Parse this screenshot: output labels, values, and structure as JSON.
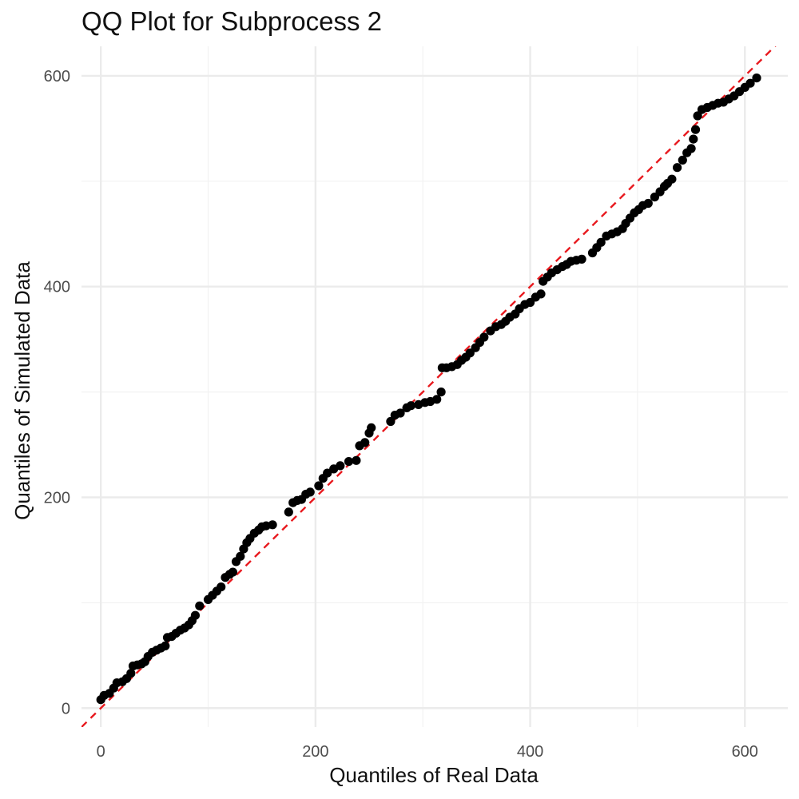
{
  "chart_data": {
    "type": "scatter",
    "title": "QQ Plot for Subprocess 2",
    "xlabel": "Quantiles of Real Data",
    "ylabel": "Quantiles of Simulated Data",
    "xlim": [
      -18,
      640
    ],
    "ylim": [
      -18,
      628
    ],
    "x_ticks": [
      0,
      200,
      400,
      600
    ],
    "y_ticks": [
      0,
      200,
      400,
      600
    ],
    "x_minor_ticks": [
      100,
      300,
      500
    ],
    "y_minor_ticks": [
      100,
      300,
      500
    ],
    "grid": true,
    "legend": "none",
    "point_color": "#000000",
    "reference_line": {
      "slope": 1,
      "intercept": 0,
      "color": "#e8191e",
      "style": "dashed"
    },
    "points": [
      [
        0,
        8
      ],
      [
        3,
        12
      ],
      [
        8,
        14
      ],
      [
        12,
        19
      ],
      [
        15,
        24
      ],
      [
        20,
        25
      ],
      [
        24,
        28
      ],
      [
        28,
        33
      ],
      [
        30,
        40
      ],
      [
        34,
        41
      ],
      [
        38,
        42
      ],
      [
        41,
        44
      ],
      [
        44,
        49
      ],
      [
        48,
        53
      ],
      [
        52,
        55
      ],
      [
        56,
        57
      ],
      [
        60,
        59
      ],
      [
        62,
        67
      ],
      [
        66,
        68
      ],
      [
        70,
        71
      ],
      [
        74,
        74
      ],
      [
        78,
        76
      ],
      [
        82,
        79
      ],
      [
        85,
        83
      ],
      [
        88,
        88
      ],
      [
        92,
        97
      ],
      [
        100,
        103
      ],
      [
        104,
        107
      ],
      [
        108,
        111
      ],
      [
        112,
        115
      ],
      [
        116,
        124
      ],
      [
        120,
        127
      ],
      [
        123,
        129
      ],
      [
        126,
        139
      ],
      [
        130,
        144
      ],
      [
        133,
        151
      ],
      [
        136,
        157
      ],
      [
        139,
        161
      ],
      [
        143,
        166
      ],
      [
        147,
        169
      ],
      [
        150,
        172
      ],
      [
        154,
        173
      ],
      [
        160,
        174
      ],
      [
        175,
        186
      ],
      [
        179,
        195
      ],
      [
        183,
        197
      ],
      [
        187,
        198
      ],
      [
        191,
        203
      ],
      [
        195,
        205
      ],
      [
        203,
        211
      ],
      [
        207,
        218
      ],
      [
        211,
        223
      ],
      [
        217,
        227
      ],
      [
        223,
        230
      ],
      [
        231,
        234
      ],
      [
        238,
        235
      ],
      [
        241,
        249
      ],
      [
        246,
        252
      ],
      [
        250,
        261
      ],
      [
        252,
        266
      ],
      [
        270,
        272
      ],
      [
        274,
        278
      ],
      [
        279,
        280
      ],
      [
        285,
        285
      ],
      [
        289,
        287
      ],
      [
        296,
        288
      ],
      [
        302,
        290
      ],
      [
        307,
        291
      ],
      [
        313,
        293
      ],
      [
        317,
        300
      ],
      [
        318,
        323
      ],
      [
        322,
        323
      ],
      [
        327,
        324
      ],
      [
        332,
        326
      ],
      [
        336,
        330
      ],
      [
        340,
        333
      ],
      [
        344,
        337
      ],
      [
        349,
        342
      ],
      [
        353,
        347
      ],
      [
        357,
        352
      ],
      [
        363,
        358
      ],
      [
        368,
        362
      ],
      [
        373,
        364
      ],
      [
        377,
        367
      ],
      [
        381,
        371
      ],
      [
        386,
        374
      ],
      [
        390,
        379
      ],
      [
        395,
        383
      ],
      [
        400,
        385
      ],
      [
        405,
        390
      ],
      [
        410,
        393
      ],
      [
        412,
        405
      ],
      [
        416,
        409
      ],
      [
        420,
        413
      ],
      [
        425,
        416
      ],
      [
        430,
        419
      ],
      [
        434,
        421
      ],
      [
        438,
        424
      ],
      [
        443,
        425
      ],
      [
        448,
        426
      ],
      [
        458,
        432
      ],
      [
        462,
        437
      ],
      [
        466,
        442
      ],
      [
        471,
        448
      ],
      [
        476,
        450
      ],
      [
        481,
        452
      ],
      [
        486,
        455
      ],
      [
        489,
        460
      ],
      [
        493,
        465
      ],
      [
        497,
        470
      ],
      [
        501,
        473
      ],
      [
        505,
        477
      ],
      [
        510,
        479
      ],
      [
        516,
        485
      ],
      [
        521,
        490
      ],
      [
        525,
        495
      ],
      [
        528,
        498
      ],
      [
        532,
        502
      ],
      [
        537,
        513
      ],
      [
        542,
        520
      ],
      [
        546,
        527
      ],
      [
        550,
        531
      ],
      [
        552,
        540
      ],
      [
        554,
        549
      ],
      [
        556,
        562
      ],
      [
        560,
        568
      ],
      [
        565,
        570
      ],
      [
        570,
        572
      ],
      [
        575,
        574
      ],
      [
        580,
        575
      ],
      [
        585,
        578
      ],
      [
        590,
        581
      ],
      [
        595,
        585
      ],
      [
        600,
        589
      ],
      [
        605,
        593
      ],
      [
        611,
        598
      ]
    ]
  }
}
